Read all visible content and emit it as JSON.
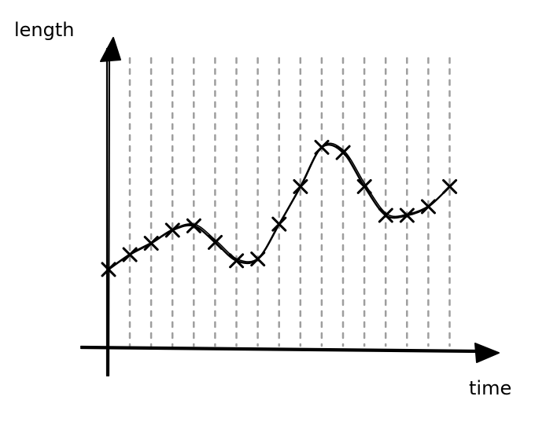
{
  "chart_data": {
    "type": "line",
    "xlabel": "time",
    "ylabel": "length",
    "grid": "vertical dashed",
    "series_color": "#000000",
    "grid_color": "#9e9e9e",
    "points": [
      {
        "x": 0,
        "y": 0.92
      },
      {
        "x": 1,
        "y": 1.09
      },
      {
        "x": 2,
        "y": 1.22
      },
      {
        "x": 3,
        "y": 1.37
      },
      {
        "x": 4,
        "y": 1.42
      },
      {
        "x": 5,
        "y": 1.23
      },
      {
        "x": 6,
        "y": 1.02
      },
      {
        "x": 7,
        "y": 1.04
      },
      {
        "x": 8,
        "y": 1.44
      },
      {
        "x": 9,
        "y": 1.87
      },
      {
        "x": 10,
        "y": 2.32
      },
      {
        "x": 11,
        "y": 2.26
      },
      {
        "x": 12,
        "y": 1.87
      },
      {
        "x": 13,
        "y": 1.54
      },
      {
        "x": 14,
        "y": 1.54
      },
      {
        "x": 15,
        "y": 1.64
      },
      {
        "x": 16,
        "y": 1.87
      }
    ]
  }
}
